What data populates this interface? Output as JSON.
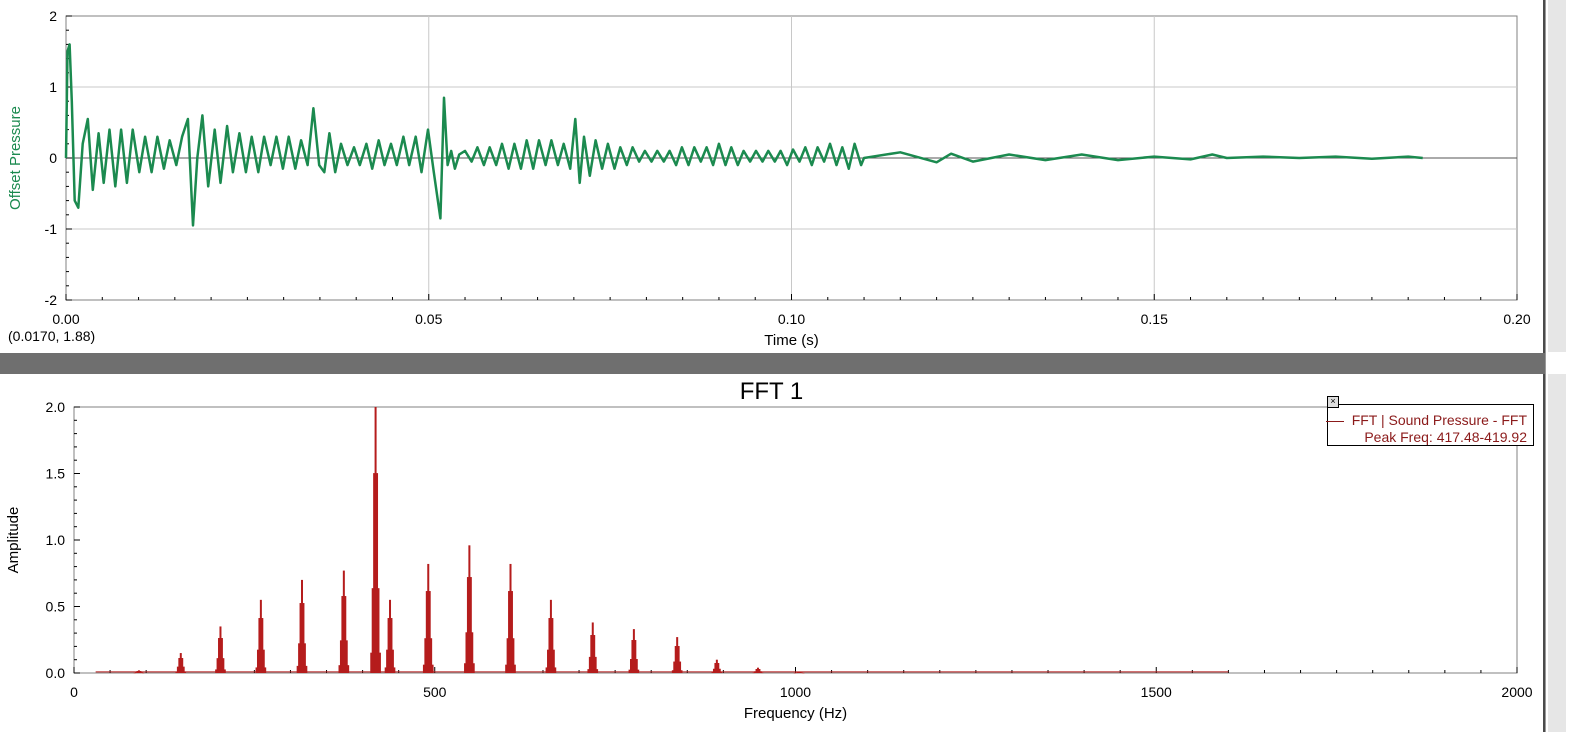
{
  "colors": {
    "wave": "#1b8a4f",
    "fft": "#b51c1c",
    "fft_label": "#8b1a1a",
    "grid": "#c8c8c8"
  },
  "top_panel": {
    "readout": "(0.0170, 1.88)"
  },
  "bottom_panel": {
    "title": "FFT 1",
    "legend": {
      "line1": "FFT | Sound Pressure - FFT",
      "line2": "Peak Freq: 417.48-419.92",
      "close_icon": "close-icon"
    }
  },
  "chart_data": [
    {
      "type": "line",
      "ylabel": "Offset Pressure",
      "xlabel": "Time (s)",
      "xlim": [
        0,
        0.2
      ],
      "ylim": [
        -2,
        2
      ],
      "xticks": [
        "0.00",
        "0.05",
        "0.10",
        "0.15",
        "0.20"
      ],
      "yticks": [
        "-2",
        "-1",
        "0",
        "1",
        "2"
      ],
      "grid": true,
      "series": [
        {
          "x": [
            0.0,
            0.0002,
            0.0005,
            0.0008,
            0.0012,
            0.0017,
            0.0023,
            0.003,
            0.0037,
            0.0045,
            0.0052,
            0.006,
            0.0068,
            0.0076,
            0.0084,
            0.0092,
            0.0101,
            0.0109,
            0.0118,
            0.0126,
            0.0135,
            0.0143,
            0.0152,
            0.016,
            0.0168,
            0.0175,
            0.0181,
            0.0188,
            0.0196,
            0.0205,
            0.0213,
            0.0222,
            0.023,
            0.0239,
            0.0248,
            0.0256,
            0.0265,
            0.0273,
            0.0282,
            0.029,
            0.0299,
            0.0307,
            0.0316,
            0.0324,
            0.0333,
            0.0341,
            0.0349,
            0.0356,
            0.0363,
            0.0371,
            0.0379,
            0.0388,
            0.0397,
            0.0405,
            0.0414,
            0.0422,
            0.0431,
            0.0439,
            0.0448,
            0.0456,
            0.0465,
            0.0473,
            0.0482,
            0.049,
            0.0499,
            0.0507,
            0.0516,
            0.0521,
            0.0526,
            0.0531,
            0.0536,
            0.0542,
            0.055,
            0.0559,
            0.0567,
            0.0576,
            0.0584,
            0.0593,
            0.0601,
            0.061,
            0.0618,
            0.0627,
            0.0635,
            0.0644,
            0.0652,
            0.0661,
            0.0669,
            0.0678,
            0.0686,
            0.0695,
            0.0702,
            0.0708,
            0.0714,
            0.0722,
            0.073,
            0.0739,
            0.0747,
            0.0756,
            0.0764,
            0.0773,
            0.0781,
            0.079,
            0.0798,
            0.0807,
            0.0815,
            0.0824,
            0.0832,
            0.0841,
            0.0849,
            0.0858,
            0.0866,
            0.0875,
            0.0883,
            0.0892,
            0.09,
            0.0909,
            0.0917,
            0.0926,
            0.0934,
            0.0943,
            0.0951,
            0.096,
            0.0968,
            0.0977,
            0.0985,
            0.0994,
            0.1002,
            0.1011,
            0.1019,
            0.1028,
            0.1036,
            0.1045,
            0.1053,
            0.1062,
            0.107,
            0.1079,
            0.1087,
            0.1096,
            0.11,
            0.115,
            0.12,
            0.122,
            0.125,
            0.13,
            0.135,
            0.14,
            0.145,
            0.15,
            0.155,
            0.158,
            0.16,
            0.165,
            0.17,
            0.175,
            0.18,
            0.185,
            0.187
          ],
          "y": [
            0.0,
            1.5,
            1.6,
            0.8,
            -0.6,
            -0.7,
            0.2,
            0.55,
            -0.45,
            0.35,
            -0.35,
            0.4,
            -0.4,
            0.4,
            -0.35,
            0.4,
            -0.2,
            0.3,
            -0.2,
            0.3,
            -0.15,
            0.25,
            -0.1,
            0.3,
            0.55,
            -0.95,
            0.0,
            0.6,
            -0.4,
            0.4,
            -0.35,
            0.45,
            -0.2,
            0.35,
            -0.2,
            0.3,
            -0.2,
            0.3,
            -0.1,
            0.3,
            -0.15,
            0.3,
            -0.15,
            0.25,
            -0.1,
            0.7,
            -0.1,
            -0.2,
            0.35,
            -0.2,
            0.2,
            -0.1,
            0.15,
            -0.1,
            0.2,
            -0.15,
            0.25,
            -0.1,
            0.2,
            -0.1,
            0.3,
            -0.1,
            0.3,
            -0.2,
            0.4,
            -0.2,
            -0.85,
            0.85,
            -0.1,
            0.1,
            -0.15,
            0.05,
            0.1,
            -0.05,
            0.15,
            -0.1,
            0.15,
            -0.1,
            0.2,
            -0.15,
            0.2,
            -0.15,
            0.25,
            -0.15,
            0.25,
            -0.1,
            0.25,
            -0.1,
            0.2,
            -0.15,
            0.55,
            -0.35,
            0.3,
            -0.25,
            0.25,
            -0.15,
            0.2,
            -0.15,
            0.15,
            -0.1,
            0.15,
            -0.05,
            0.1,
            -0.05,
            0.1,
            -0.05,
            0.1,
            -0.1,
            0.15,
            -0.1,
            0.15,
            -0.05,
            0.15,
            -0.1,
            0.2,
            -0.1,
            0.15,
            -0.1,
            0.1,
            -0.05,
            0.1,
            -0.05,
            0.1,
            -0.05,
            0.1,
            -0.1,
            0.12,
            -0.05,
            0.15,
            -0.1,
            0.15,
            -0.05,
            0.2,
            -0.1,
            0.15,
            -0.15,
            0.2,
            -0.1,
            0.0,
            0.08,
            -0.06,
            0.06,
            -0.05,
            0.05,
            -0.03,
            0.05,
            -0.03,
            0.02,
            -0.02,
            0.05,
            0.0,
            0.02,
            0.0,
            0.02,
            -0.01,
            0.02,
            0.0
          ]
        }
      ]
    },
    {
      "type": "bar",
      "title": "FFT 1",
      "ylabel": "Amplitude",
      "xlabel": "Frequency (Hz)",
      "xlim": [
        0,
        2000
      ],
      "ylim": [
        0,
        2.0
      ],
      "xticks": [
        "0",
        "500",
        "1000",
        "1500",
        "2000"
      ],
      "yticks": [
        "0.0",
        "0.5",
        "1.0",
        "1.5",
        "2.0"
      ],
      "grid": false,
      "legend": "top-right",
      "peaks": [
        {
          "freq": 90,
          "amp": 0.02
        },
        {
          "freq": 148,
          "amp": 0.15
        },
        {
          "freq": 203,
          "amp": 0.35
        },
        {
          "freq": 259,
          "amp": 0.55
        },
        {
          "freq": 316,
          "amp": 0.7
        },
        {
          "freq": 374,
          "amp": 0.77
        },
        {
          "freq": 418,
          "amp": 2.0
        },
        {
          "freq": 438,
          "amp": 0.55
        },
        {
          "freq": 491,
          "amp": 0.82
        },
        {
          "freq": 548,
          "amp": 0.96
        },
        {
          "freq": 605,
          "amp": 0.82
        },
        {
          "freq": 661,
          "amp": 0.55
        },
        {
          "freq": 719,
          "amp": 0.38
        },
        {
          "freq": 776,
          "amp": 0.33
        },
        {
          "freq": 836,
          "amp": 0.27
        },
        {
          "freq": 891,
          "amp": 0.1
        },
        {
          "freq": 948,
          "amp": 0.04
        },
        {
          "freq": 1005,
          "amp": 0.01
        }
      ]
    }
  ]
}
